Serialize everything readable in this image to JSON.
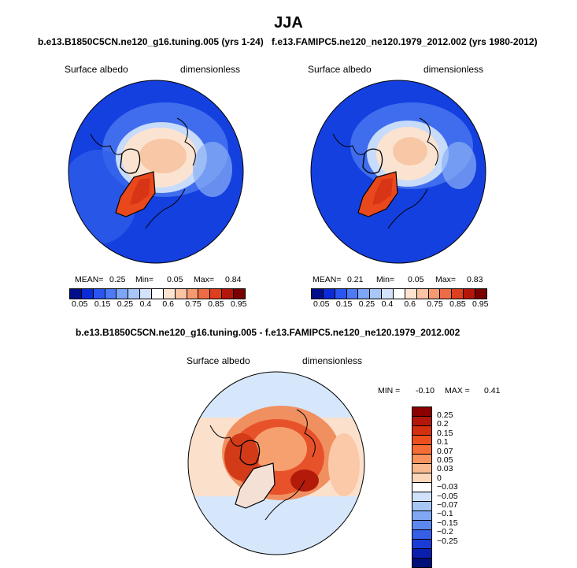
{
  "title": "JJA",
  "panel_left": {
    "case_title": "b.e13.B1850C5CN.ne120_g16.tuning.005 (yrs 1-24)",
    "variable": "Surface albedo",
    "units": "dimensionless",
    "mean_label": "MEAN=",
    "mean": "0.25",
    "min_label": "Min=",
    "min": "0.05",
    "max_label": "Max=",
    "max": "0.84"
  },
  "panel_right": {
    "case_title": "f.e13.FAMIPC5.ne120_ne120.1979_2012.002 (yrs 1980-2012)",
    "variable": "Surface albedo",
    "units": "dimensionless",
    "mean_label": "MEAN=",
    "mean": "0.21",
    "min_label": "Min=",
    "min": "0.05",
    "max_label": "Max=",
    "max": "0.83"
  },
  "panel_diff": {
    "case_title": "b.e13.B1850C5CN.ne120_g16.tuning.005 - f.e13.FAMIPC5.ne120_ne120.1979_2012.002",
    "variable": "Surface albedo",
    "units": "dimensionless",
    "min_label": "MIN =",
    "min": "-0.10",
    "max_label": "MAX =",
    "max": "0.41"
  },
  "abs_colorbar": {
    "ticks": [
      "0.05",
      "0.15",
      "0.25",
      "0.4",
      "0.6",
      "0.75",
      "0.85",
      "0.95"
    ],
    "colors": [
      "#000e8c",
      "#0a2bd6",
      "#2a55f2",
      "#4d7bf5",
      "#7ea6f6",
      "#a9c6f8",
      "#d3e3fb",
      "#ffffff",
      "#fde4d0",
      "#fbc4a2",
      "#f69a72",
      "#ee6c45",
      "#de3f1f",
      "#b4170a",
      "#7a0000"
    ]
  },
  "diff_colorbar": {
    "ticks": [
      "0.25",
      "0.2",
      "0.15",
      "0.1",
      "0.07",
      "0.05",
      "0.03",
      "0",
      "−0.03",
      "−0.05",
      "−0.07",
      "−0.1",
      "−0.15",
      "−0.2",
      "−0.25"
    ],
    "colors": [
      "#8b0000",
      "#b3170b",
      "#d4300f",
      "#ec4f1c",
      "#f56d35",
      "#f8935e",
      "#fab98f",
      "#fbd6b8",
      "#ffffff",
      "#cfe2fa",
      "#a6c6f6",
      "#7fa7f3",
      "#5b87ef",
      "#3560e6",
      "#1a3cd4",
      "#0a1fae",
      "#000e7a"
    ]
  }
}
